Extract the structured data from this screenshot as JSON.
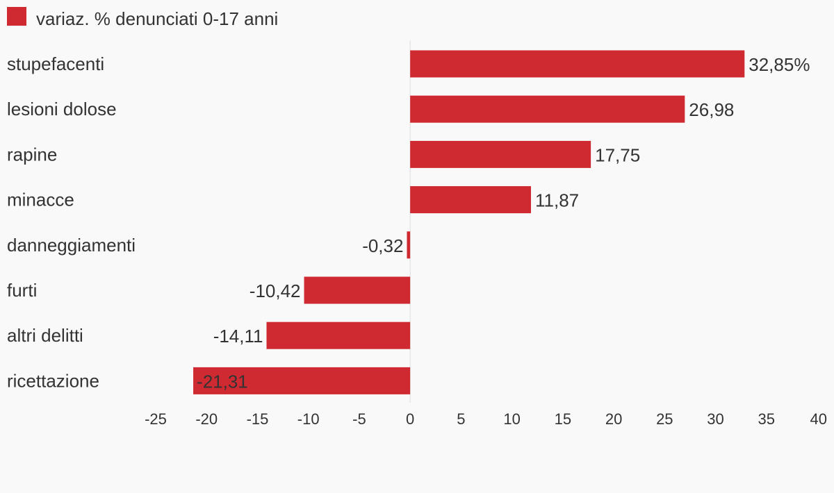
{
  "chart_data": {
    "type": "bar",
    "orientation": "horizontal",
    "categories": [
      "stupefacenti",
      "lesioni dolose",
      "rapine",
      "minacce",
      "danneggiamenti",
      "furti",
      "altri delitti",
      "ricettazione"
    ],
    "series": [
      {
        "name": "variaz. % denunciati 0-17 anni",
        "color": "#cf2a31",
        "values": [
          32.85,
          26.98,
          17.75,
          11.87,
          -0.32,
          -10.42,
          -14.11,
          -21.31
        ]
      }
    ],
    "data_labels": [
      "32,85%",
      "26,98",
      "17,75",
      "11,87",
      "-0,32",
      "-10,42",
      "-14,11",
      "-21,31"
    ],
    "x_ticks": [
      "-25",
      "-20",
      "-15",
      "-10",
      "-5",
      "0",
      "5",
      "10",
      "15",
      "20",
      "25",
      "30",
      "35",
      "40"
    ],
    "xlim": [
      -25,
      40
    ],
    "legend_position": "top-left",
    "grid": false,
    "title": "",
    "xlabel": "",
    "ylabel": ""
  }
}
